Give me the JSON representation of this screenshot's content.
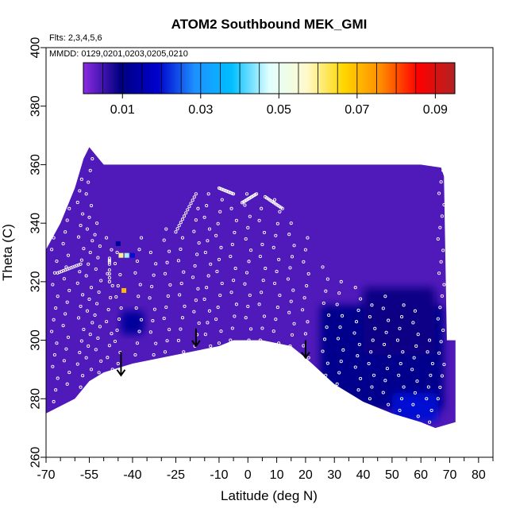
{
  "chart_data": {
    "type": "heatmap",
    "title": "ATOM2 Southbound MEK_GMI",
    "xlabel": "Latitude (deg N)",
    "ylabel": "Theta (C)",
    "xlim": [
      -70,
      85
    ],
    "ylim": [
      260,
      400
    ],
    "x_ticks": [
      -70,
      -55,
      -40,
      -25,
      -10,
      0,
      10,
      20,
      30,
      40,
      50,
      60,
      70,
      80
    ],
    "x_tick_labels": [
      "-70",
      "-55",
      "-40",
      "-25",
      "-10",
      "0",
      "10",
      "20",
      "30",
      "40",
      "50",
      "60",
      "70",
      "80"
    ],
    "x_minor_ticks": [
      -65,
      -60,
      -50,
      -45,
      -35,
      -30,
      -20,
      -15,
      -5,
      5,
      15,
      25,
      35,
      45,
      55,
      65,
      75,
      85
    ],
    "y_ticks": [
      260,
      280,
      300,
      320,
      340,
      360,
      380,
      400
    ],
    "y_tick_labels": [
      "260",
      "280",
      "300",
      "320",
      "340",
      "360",
      "380",
      "400"
    ],
    "annotations": [
      "Flts: 2,3,4,5,6",
      "MMDD: 0129,0201,0203,0205,0210"
    ],
    "colorbar": {
      "range": [
        0,
        0.095
      ],
      "ticks": [
        0.01,
        0.03,
        0.05,
        0.07,
        0.09
      ],
      "tick_labels": [
        "0.01",
        "0.03",
        "0.05",
        "0.07",
        "0.09"
      ],
      "colors": [
        "#8a2be2",
        "#000080",
        "#0000cd",
        "#1e90ff",
        "#00bfff",
        "#e0ffff",
        "#fffacd",
        "#ffd700",
        "#ff8c00",
        "#ff0000",
        "#b22222"
      ]
    },
    "background_value": 0.004,
    "field_boundary": {
      "top": [
        [
          -70,
          331
        ],
        [
          -65,
          340
        ],
        [
          -60,
          352
        ],
        [
          -57,
          362
        ],
        [
          -55,
          366
        ],
        [
          -50,
          360
        ],
        [
          -30,
          360
        ],
        [
          -10,
          360
        ],
        [
          0,
          360
        ],
        [
          20,
          360
        ],
        [
          40,
          360
        ],
        [
          50,
          360
        ],
        [
          60,
          360
        ],
        [
          67,
          359
        ],
        [
          68,
          356
        ],
        [
          69,
          300
        ],
        [
          72,
          300
        ]
      ],
      "bottom": [
        [
          -70,
          275
        ],
        [
          -60,
          280
        ],
        [
          -55,
          286
        ],
        [
          -50,
          289
        ],
        [
          -40,
          292
        ],
        [
          -20,
          296
        ],
        [
          -10,
          298
        ],
        [
          -5,
          300
        ],
        [
          5,
          300
        ],
        [
          10,
          299
        ],
        [
          15,
          298
        ],
        [
          20,
          294
        ],
        [
          30,
          285
        ],
        [
          40,
          279
        ],
        [
          50,
          275
        ],
        [
          60,
          272
        ],
        [
          65,
          270
        ],
        [
          72,
          272
        ]
      ]
    },
    "enhanced_regions": [
      {
        "x": [
          25,
          68
        ],
        "y": [
          276,
          312
        ],
        "value": 0.011
      },
      {
        "x": [
          40,
          65
        ],
        "y": [
          295,
          318
        ],
        "value": 0.009
      },
      {
        "x": [
          50,
          66
        ],
        "y": [
          272,
          282
        ],
        "value": 0.02
      },
      {
        "x": [
          -44,
          -36
        ],
        "y": [
          302,
          310
        ],
        "value": 0.013
      }
    ],
    "anomalies": [
      {
        "x": -44,
        "y": 329,
        "value": 0.06
      },
      {
        "x": -42,
        "y": 329,
        "value": 0.045
      },
      {
        "x": -40,
        "y": 329,
        "value": 0.02
      },
      {
        "x": -43,
        "y": 317,
        "value": 0.07
      },
      {
        "x": -45,
        "y": 333,
        "value": 0.012
      }
    ],
    "arrows": [
      {
        "x": -44,
        "y_start": 296,
        "y_end": 288
      },
      {
        "x": -18,
        "y_start": 304,
        "y_end": 298
      },
      {
        "x": 20,
        "y_start": 300,
        "y_end": 294
      }
    ],
    "obs_profiles": [
      {
        "x": -67,
        "y": [
          275,
          335
        ]
      },
      {
        "x": -63,
        "y": [
          285,
          345
        ]
      },
      {
        "x": -58,
        "y": [
          280,
          355
        ]
      },
      {
        "x": -55,
        "y": [
          290,
          362
        ]
      },
      {
        "x": -52,
        "y": [
          285,
          340
        ]
      },
      {
        "x": -48,
        "y": [
          290,
          335
        ]
      },
      {
        "x": -45,
        "y": [
          292,
          330
        ]
      },
      {
        "x": -38,
        "y": [
          295,
          335
        ]
      },
      {
        "x": -33,
        "y": [
          295,
          330
        ]
      },
      {
        "x": -28,
        "y": [
          296,
          338
        ]
      },
      {
        "x": -23,
        "y": [
          296,
          335
        ]
      },
      {
        "x": -18,
        "y": [
          298,
          345
        ]
      },
      {
        "x": -14,
        "y": [
          298,
          350
        ]
      },
      {
        "x": -10,
        "y": [
          299,
          348
        ]
      },
      {
        "x": -5,
        "y": [
          300,
          345
        ]
      },
      {
        "x": 0,
        "y": [
          300,
          350
        ]
      },
      {
        "x": 5,
        "y": [
          300,
          345
        ]
      },
      {
        "x": 10,
        "y": [
          299,
          348
        ]
      },
      {
        "x": 15,
        "y": [
          298,
          340
        ]
      },
      {
        "x": 20,
        "y": [
          294,
          335
        ]
      },
      {
        "x": 27,
        "y": [
          288,
          325
        ]
      },
      {
        "x": 32,
        "y": [
          285,
          320
        ]
      },
      {
        "x": 38,
        "y": [
          283,
          318
        ]
      },
      {
        "x": 43,
        "y": [
          280,
          312
        ]
      },
      {
        "x": 48,
        "y": [
          278,
          315
        ]
      },
      {
        "x": 53,
        "y": [
          276,
          312
        ]
      },
      {
        "x": 58,
        "y": [
          274,
          310
        ]
      },
      {
        "x": 63,
        "y": [
          272,
          300
        ]
      },
      {
        "x": 67,
        "y": [
          280,
          358
        ]
      }
    ],
    "obs_segments": [
      {
        "x": [
          -66,
          -58
        ],
        "y": [
          323,
          326
        ]
      },
      {
        "x": -48,
        "y2": [
          [
            320,
            324
          ],
          [
            326,
            328
          ]
        ]
      },
      {
        "x": [
          -25,
          -18
        ],
        "y": [
          337,
          350
        ]
      },
      {
        "x": [
          -10,
          -5
        ],
        "y": [
          352,
          350
        ]
      },
      {
        "x": [
          -2,
          3
        ],
        "y": [
          347,
          350
        ]
      },
      {
        "x": [
          6,
          12
        ],
        "y": [
          349,
          345
        ]
      }
    ]
  }
}
